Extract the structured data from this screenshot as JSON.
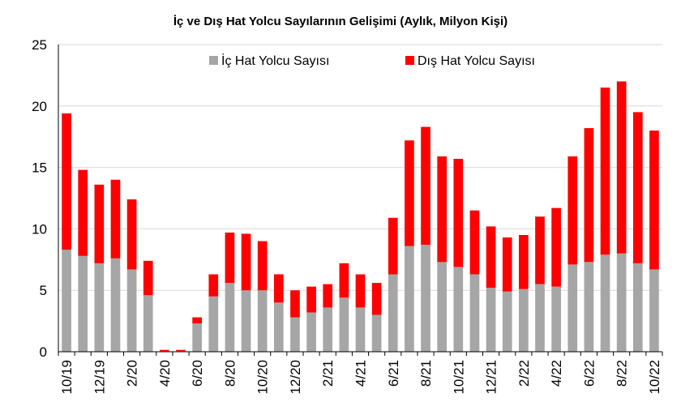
{
  "chart_data": {
    "type": "bar",
    "stacked": true,
    "title": "İç ve Dış Hat Yolcu Sayılarının Gelişimi (Aylık, Milyon Kişi)",
    "xlabel": "",
    "ylabel": "",
    "ylim": [
      0,
      25
    ],
    "yticks": [
      "0",
      "5",
      "10",
      "15",
      "20",
      "25"
    ],
    "grid": true,
    "legend_position": "top-right",
    "categories": [
      "10/19",
      "11/19",
      "12/19",
      "1/20",
      "2/20",
      "3/20",
      "4/20",
      "5/20",
      "6/20",
      "7/20",
      "8/20",
      "9/20",
      "10/20",
      "11/20",
      "12/20",
      "1/21",
      "2/21",
      "3/21",
      "4/21",
      "5/21",
      "6/21",
      "7/21",
      "8/21",
      "9/21",
      "10/21",
      "11/21",
      "12/21",
      "1/22",
      "2/22",
      "3/22",
      "4/22",
      "5/22",
      "6/22",
      "7/22",
      "8/22",
      "9/22",
      "10/22"
    ],
    "tick_labels": [
      "10/19",
      "",
      "12/19",
      "",
      "2/20",
      "",
      "4/20",
      "",
      "6/20",
      "",
      "8/20",
      "",
      "10/20",
      "",
      "12/20",
      "",
      "2/21",
      "",
      "4/21",
      "",
      "6/21",
      "",
      "8/21",
      "",
      "10/21",
      "",
      "12/21",
      "",
      "2/22",
      "",
      "4/22",
      "",
      "6/22",
      "",
      "8/22",
      "",
      "10/22"
    ],
    "series": [
      {
        "name": "İç Hat Yolcu Sayısı",
        "color": "#a6a6a6",
        "values": [
          8.3,
          7.8,
          7.2,
          7.6,
          6.7,
          4.6,
          0.05,
          0.05,
          2.3,
          4.5,
          5.6,
          5.0,
          5.0,
          4.0,
          2.8,
          3.2,
          3.6,
          4.4,
          3.6,
          3.0,
          6.3,
          8.6,
          8.7,
          7.3,
          6.9,
          6.3,
          5.2,
          4.9,
          5.1,
          5.5,
          5.3,
          7.1,
          7.3,
          7.9,
          8.0,
          7.2,
          6.7
        ]
      },
      {
        "name": "Dış Hat Yolcu Sayısı",
        "color": "#ff0000",
        "values": [
          11.1,
          7.0,
          6.4,
          6.4,
          5.7,
          2.8,
          0.1,
          0.1,
          0.5,
          1.8,
          4.1,
          4.6,
          4.0,
          2.3,
          2.2,
          2.1,
          1.9,
          2.8,
          2.7,
          2.6,
          4.6,
          8.6,
          9.6,
          8.6,
          8.8,
          5.2,
          5.0,
          4.4,
          4.4,
          5.5,
          6.4,
          8.8,
          10.9,
          13.6,
          14.0,
          12.3,
          11.3
        ]
      }
    ]
  }
}
